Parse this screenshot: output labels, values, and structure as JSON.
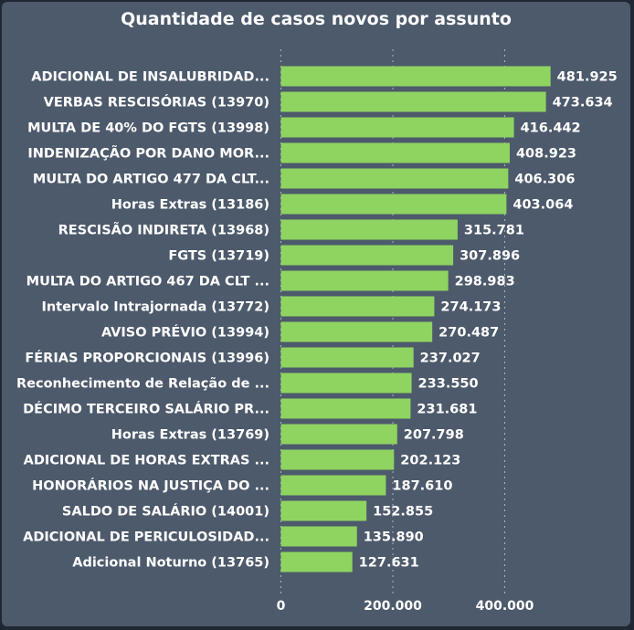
{
  "chart_data": {
    "type": "bar",
    "orientation": "horizontal",
    "title": "Quantidade de casos novos por assunto",
    "bar_color": "#8fd460",
    "xlim": [
      0,
      500000
    ],
    "x_ticks": [
      {
        "value": 0,
        "label": "0"
      },
      {
        "value": 200000,
        "label": "200.000"
      },
      {
        "value": 400000,
        "label": "400.000"
      }
    ],
    "grid": "vertical dotted",
    "categories": [
      "ADICIONAL DE INSALUBRIDAD...",
      "VERBAS RESCISÓRIAS (13970)",
      "MULTA DE 40% DO FGTS (13998)",
      "INDENIZAÇÃO POR DANO MOR...",
      "MULTA DO ARTIGO 477 DA CLT...",
      "Horas Extras (13186)",
      "RESCISÃO INDIRETA (13968)",
      "FGTS (13719)",
      "MULTA DO ARTIGO 467 DA CLT ...",
      "Intervalo Intrajornada (13772)",
      "AVISO PRÉVIO (13994)",
      "FÉRIAS PROPORCIONAIS (13996)",
      "Reconhecimento de Relação de ...",
      "DÉCIMO TERCEIRO SALÁRIO PR...",
      "Horas Extras (13769)",
      "ADICIONAL DE HORAS EXTRAS ...",
      "HONORÁRIOS NA JUSTIÇA DO ...",
      "SALDO DE SALÁRIO (14001)",
      "ADICIONAL DE PERICULOSIDAD...",
      "Adicional Noturno (13765)"
    ],
    "values": [
      481925,
      473634,
      416442,
      408923,
      406306,
      403064,
      315781,
      307896,
      298983,
      274173,
      270487,
      237027,
      233550,
      231681,
      207798,
      202123,
      187610,
      152855,
      135890,
      127631
    ],
    "value_labels": [
      "481.925",
      "473.634",
      "416.442",
      "408.923",
      "406.306",
      "403.064",
      "315.781",
      "307.896",
      "298.983",
      "274.173",
      "270.487",
      "237.027",
      "233.550",
      "231.681",
      "207.798",
      "202.123",
      "187.610",
      "152.855",
      "135.890",
      "127.631"
    ]
  }
}
